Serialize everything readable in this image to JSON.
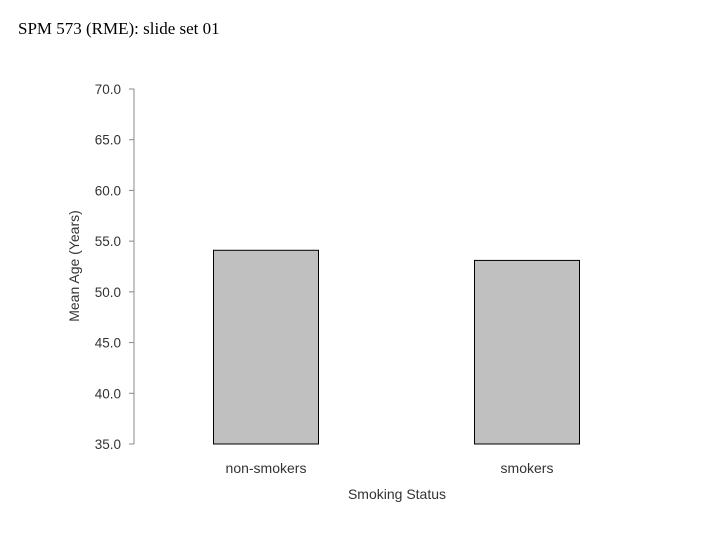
{
  "slide": {
    "header": "SPM 573 (RME): slide set 01"
  },
  "chart_data": {
    "type": "bar",
    "categories": [
      "non-smokers",
      "smokers"
    ],
    "values": [
      54.1,
      53.1
    ],
    "xlabel": "Smoking Status",
    "ylabel": "Mean Age (Years)",
    "ylim": [
      35.0,
      70.0
    ],
    "yticks": [
      "35.0",
      "40.0",
      "45.0",
      "50.0",
      "55.0",
      "60.0",
      "65.0",
      "70.0"
    ],
    "grid": false,
    "legend": "none",
    "colors": {
      "bar_fill": "#c0c0c0",
      "bar_stroke": "#000000",
      "axis": "#888888",
      "text": "#333333"
    }
  }
}
